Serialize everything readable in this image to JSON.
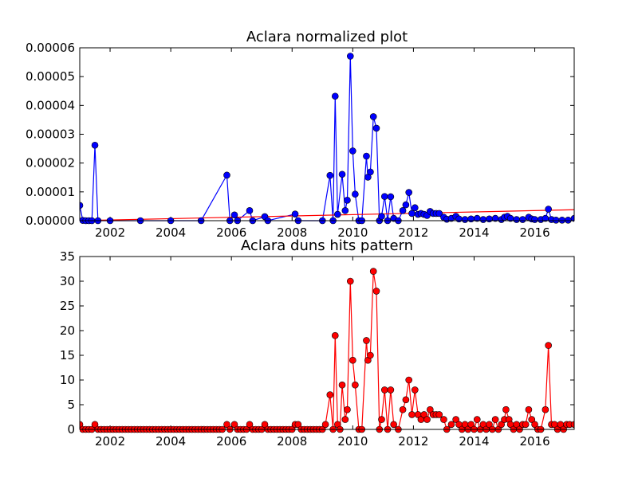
{
  "chart_data": [
    {
      "type": "line",
      "title": "Aclara normalized plot",
      "xlabel": "",
      "ylabel": "",
      "xlim": [
        2001.0,
        2017.3
      ],
      "ylim": [
        0,
        6e-05
      ],
      "x_ticks": [
        2002,
        2004,
        2006,
        2008,
        2010,
        2012,
        2014,
        2016
      ],
      "x_tick_labels": [
        "2002",
        "2004",
        "2006",
        "2008",
        "2010",
        "2012",
        "2014",
        "2016"
      ],
      "y_ticks": [
        0,
        1e-05,
        2e-05,
        3e-05,
        4e-05,
        5e-05,
        6e-05
      ],
      "y_tick_labels": [
        "0.00000",
        "0.00001",
        "0.00002",
        "0.00003",
        "0.00004",
        "0.00005",
        "0.00006"
      ],
      "grid": false,
      "series": [
        {
          "color": "#0000ff",
          "marker": "circle",
          "points": [
            [
              2001.0,
              5.3e-06
            ],
            [
              2001.1,
              1e-07
            ],
            [
              2001.2,
              0
            ],
            [
              2001.3,
              0
            ],
            [
              2001.4,
              0
            ],
            [
              2001.5,
              2.62e-05
            ],
            [
              2001.6,
              0
            ],
            [
              2002.0,
              0
            ],
            [
              2003.0,
              0
            ],
            [
              2004.0,
              0
            ],
            [
              2005.0,
              0
            ],
            [
              2005.85,
              1.58e-05
            ],
            [
              2005.95,
              0
            ],
            [
              2006.1,
              2e-06
            ],
            [
              2006.2,
              0
            ],
            [
              2006.6,
              3.5e-06
            ],
            [
              2006.7,
              0
            ],
            [
              2007.1,
              1.4e-06
            ],
            [
              2007.2,
              0
            ],
            [
              2008.1,
              2.3e-06
            ],
            [
              2008.2,
              0
            ],
            [
              2009.0,
              0
            ],
            [
              2009.25,
              1.57e-05
            ],
            [
              2009.35,
              0
            ],
            [
              2009.42,
              4.32e-05
            ],
            [
              2009.5,
              2.2e-06
            ],
            [
              2009.65,
              1.61e-05
            ],
            [
              2009.75,
              3.5e-06
            ],
            [
              2009.82,
              7.1e-06
            ],
            [
              2009.92,
              5.71e-05
            ],
            [
              2010.0,
              2.42e-05
            ],
            [
              2010.08,
              9.2e-06
            ],
            [
              2010.2,
              0
            ],
            [
              2010.3,
              0
            ],
            [
              2010.45,
              2.24e-05
            ],
            [
              2010.5,
              1.51e-05
            ],
            [
              2010.58,
              1.69e-05
            ],
            [
              2010.68,
              3.61e-05
            ],
            [
              2010.78,
              3.21e-05
            ],
            [
              2010.88,
              0
            ],
            [
              2010.95,
              1.5e-06
            ],
            [
              2011.05,
              8.4e-06
            ],
            [
              2011.15,
              0
            ],
            [
              2011.25,
              8.3e-06
            ],
            [
              2011.35,
              8e-07
            ],
            [
              2011.5,
              0
            ],
            [
              2011.65,
              3.5e-06
            ],
            [
              2011.75,
              5.5e-06
            ],
            [
              2011.85,
              9.8e-06
            ],
            [
              2011.95,
              2.5e-06
            ],
            [
              2012.05,
              4.5e-06
            ],
            [
              2012.15,
              2.2e-06
            ],
            [
              2012.25,
              2.5e-06
            ],
            [
              2012.35,
              2.2e-06
            ],
            [
              2012.45,
              1.8e-06
            ],
            [
              2012.55,
              3.2e-06
            ],
            [
              2012.65,
              2.5e-06
            ],
            [
              2012.75,
              2.5e-06
            ],
            [
              2012.85,
              2.5e-06
            ],
            [
              2013.0,
              1.2e-06
            ],
            [
              2013.1,
              5e-07
            ],
            [
              2013.25,
              8e-07
            ],
            [
              2013.4,
              1.5e-06
            ],
            [
              2013.5,
              6e-07
            ],
            [
              2013.7,
              4e-07
            ],
            [
              2013.9,
              6e-07
            ],
            [
              2014.1,
              8e-07
            ],
            [
              2014.3,
              4e-07
            ],
            [
              2014.5,
              6e-07
            ],
            [
              2014.7,
              8e-07
            ],
            [
              2014.9,
              4e-07
            ],
            [
              2015.0,
              1.2e-06
            ],
            [
              2015.1,
              1.5e-06
            ],
            [
              2015.2,
              8e-07
            ],
            [
              2015.4,
              4e-07
            ],
            [
              2015.6,
              4e-07
            ],
            [
              2015.8,
              1.2e-06
            ],
            [
              2015.9,
              6e-07
            ],
            [
              2016.0,
              4e-07
            ],
            [
              2016.2,
              4e-07
            ],
            [
              2016.35,
              8e-07
            ],
            [
              2016.45,
              4e-06
            ],
            [
              2016.55,
              4e-07
            ],
            [
              2016.7,
              2e-07
            ],
            [
              2016.9,
              2e-07
            ],
            [
              2017.1,
              2e-07
            ],
            [
              2017.3,
              8e-07
            ]
          ]
        }
      ],
      "trend_line": {
        "color": "#ff0000",
        "points": [
          [
            2001.0,
            0
          ],
          [
            2017.3,
            3.8e-06
          ]
        ]
      }
    },
    {
      "type": "line",
      "title": "Aclara duns hits pattern",
      "xlabel": "",
      "ylabel": "",
      "xlim": [
        2001.0,
        2017.3
      ],
      "ylim": [
        0,
        35
      ],
      "x_ticks": [
        2002,
        2004,
        2006,
        2008,
        2010,
        2012,
        2014,
        2016
      ],
      "x_tick_labels": [
        "2002",
        "2004",
        "2006",
        "2008",
        "2010",
        "2012",
        "2014",
        "2016"
      ],
      "y_ticks": [
        0,
        5,
        10,
        15,
        20,
        25,
        30,
        35
      ],
      "y_tick_labels": [
        "0",
        "5",
        "10",
        "15",
        "20",
        "25",
        "30",
        "35"
      ],
      "grid": false,
      "series": [
        {
          "color": "#ff0000",
          "marker": "circle",
          "points": [
            [
              2001.0,
              1
            ],
            [
              2001.1,
              0
            ],
            [
              2001.2,
              0
            ],
            [
              2001.3,
              0
            ],
            [
              2001.4,
              0
            ],
            [
              2001.5,
              1
            ],
            [
              2001.6,
              0
            ],
            [
              2001.7,
              0
            ],
            [
              2001.8,
              0
            ],
            [
              2001.9,
              0
            ],
            [
              2002.0,
              0
            ],
            [
              2002.1,
              0
            ],
            [
              2002.2,
              0
            ],
            [
              2002.3,
              0
            ],
            [
              2002.4,
              0
            ],
            [
              2002.5,
              0
            ],
            [
              2002.6,
              0
            ],
            [
              2002.7,
              0
            ],
            [
              2002.8,
              0
            ],
            [
              2002.9,
              0
            ],
            [
              2003.0,
              0
            ],
            [
              2003.1,
              0
            ],
            [
              2003.2,
              0
            ],
            [
              2003.3,
              0
            ],
            [
              2003.4,
              0
            ],
            [
              2003.5,
              0
            ],
            [
              2003.6,
              0
            ],
            [
              2003.7,
              0
            ],
            [
              2003.8,
              0
            ],
            [
              2003.9,
              0
            ],
            [
              2004.0,
              0
            ],
            [
              2004.1,
              0
            ],
            [
              2004.2,
              0
            ],
            [
              2004.3,
              0
            ],
            [
              2004.4,
              0
            ],
            [
              2004.5,
              0
            ],
            [
              2004.6,
              0
            ],
            [
              2004.7,
              0
            ],
            [
              2004.8,
              0
            ],
            [
              2004.9,
              0
            ],
            [
              2005.0,
              0
            ],
            [
              2005.1,
              0
            ],
            [
              2005.2,
              0
            ],
            [
              2005.3,
              0
            ],
            [
              2005.4,
              0
            ],
            [
              2005.5,
              0
            ],
            [
              2005.6,
              0
            ],
            [
              2005.7,
              0
            ],
            [
              2005.85,
              1
            ],
            [
              2005.95,
              0
            ],
            [
              2006.1,
              1
            ],
            [
              2006.2,
              0
            ],
            [
              2006.3,
              0
            ],
            [
              2006.4,
              0
            ],
            [
              2006.5,
              0
            ],
            [
              2006.6,
              1
            ],
            [
              2006.7,
              0
            ],
            [
              2006.8,
              0
            ],
            [
              2006.9,
              0
            ],
            [
              2007.0,
              0
            ],
            [
              2007.1,
              1
            ],
            [
              2007.2,
              0
            ],
            [
              2007.3,
              0
            ],
            [
              2007.4,
              0
            ],
            [
              2007.5,
              0
            ],
            [
              2007.6,
              0
            ],
            [
              2007.7,
              0
            ],
            [
              2007.8,
              0
            ],
            [
              2007.9,
              0
            ],
            [
              2008.0,
              0
            ],
            [
              2008.1,
              1
            ],
            [
              2008.2,
              1
            ],
            [
              2008.3,
              0
            ],
            [
              2008.4,
              0
            ],
            [
              2008.5,
              0
            ],
            [
              2008.6,
              0
            ],
            [
              2008.7,
              0
            ],
            [
              2008.8,
              0
            ],
            [
              2008.9,
              0
            ],
            [
              2009.0,
              0
            ],
            [
              2009.1,
              1
            ],
            [
              2009.25,
              7
            ],
            [
              2009.35,
              0
            ],
            [
              2009.42,
              19
            ],
            [
              2009.5,
              1
            ],
            [
              2009.58,
              0
            ],
            [
              2009.65,
              9
            ],
            [
              2009.75,
              2
            ],
            [
              2009.82,
              4
            ],
            [
              2009.92,
              30
            ],
            [
              2010.0,
              14
            ],
            [
              2010.08,
              9
            ],
            [
              2010.2,
              0
            ],
            [
              2010.3,
              0
            ],
            [
              2010.45,
              18
            ],
            [
              2010.5,
              14
            ],
            [
              2010.58,
              15
            ],
            [
              2010.68,
              32
            ],
            [
              2010.78,
              28
            ],
            [
              2010.88,
              0
            ],
            [
              2010.95,
              2
            ],
            [
              2011.05,
              8
            ],
            [
              2011.15,
              0
            ],
            [
              2011.25,
              8
            ],
            [
              2011.35,
              1
            ],
            [
              2011.5,
              0
            ],
            [
              2011.65,
              4
            ],
            [
              2011.75,
              6
            ],
            [
              2011.85,
              10
            ],
            [
              2011.95,
              3
            ],
            [
              2012.05,
              8
            ],
            [
              2012.15,
              3
            ],
            [
              2012.25,
              2
            ],
            [
              2012.35,
              3
            ],
            [
              2012.45,
              2
            ],
            [
              2012.55,
              4
            ],
            [
              2012.65,
              3
            ],
            [
              2012.75,
              3
            ],
            [
              2012.85,
              3
            ],
            [
              2013.0,
              2
            ],
            [
              2013.1,
              0
            ],
            [
              2013.25,
              1
            ],
            [
              2013.4,
              2
            ],
            [
              2013.5,
              1
            ],
            [
              2013.6,
              0
            ],
            [
              2013.7,
              1
            ],
            [
              2013.8,
              0
            ],
            [
              2013.9,
              1
            ],
            [
              2014.0,
              0
            ],
            [
              2014.1,
              2
            ],
            [
              2014.2,
              0
            ],
            [
              2014.3,
              1
            ],
            [
              2014.4,
              0
            ],
            [
              2014.5,
              1
            ],
            [
              2014.6,
              0
            ],
            [
              2014.7,
              2
            ],
            [
              2014.8,
              0
            ],
            [
              2014.9,
              1
            ],
            [
              2015.0,
              2
            ],
            [
              2015.05,
              4
            ],
            [
              2015.15,
              2
            ],
            [
              2015.2,
              1
            ],
            [
              2015.3,
              0
            ],
            [
              2015.4,
              1
            ],
            [
              2015.5,
              0
            ],
            [
              2015.6,
              1
            ],
            [
              2015.7,
              1
            ],
            [
              2015.8,
              4
            ],
            [
              2015.9,
              2
            ],
            [
              2016.0,
              1
            ],
            [
              2016.1,
              0
            ],
            [
              2016.2,
              0
            ],
            [
              2016.35,
              4
            ],
            [
              2016.45,
              17
            ],
            [
              2016.55,
              1
            ],
            [
              2016.65,
              1
            ],
            [
              2016.75,
              0
            ],
            [
              2016.85,
              1
            ],
            [
              2016.95,
              0
            ],
            [
              2017.05,
              1
            ],
            [
              2017.15,
              1
            ],
            [
              2017.3,
              1
            ]
          ]
        }
      ]
    }
  ]
}
